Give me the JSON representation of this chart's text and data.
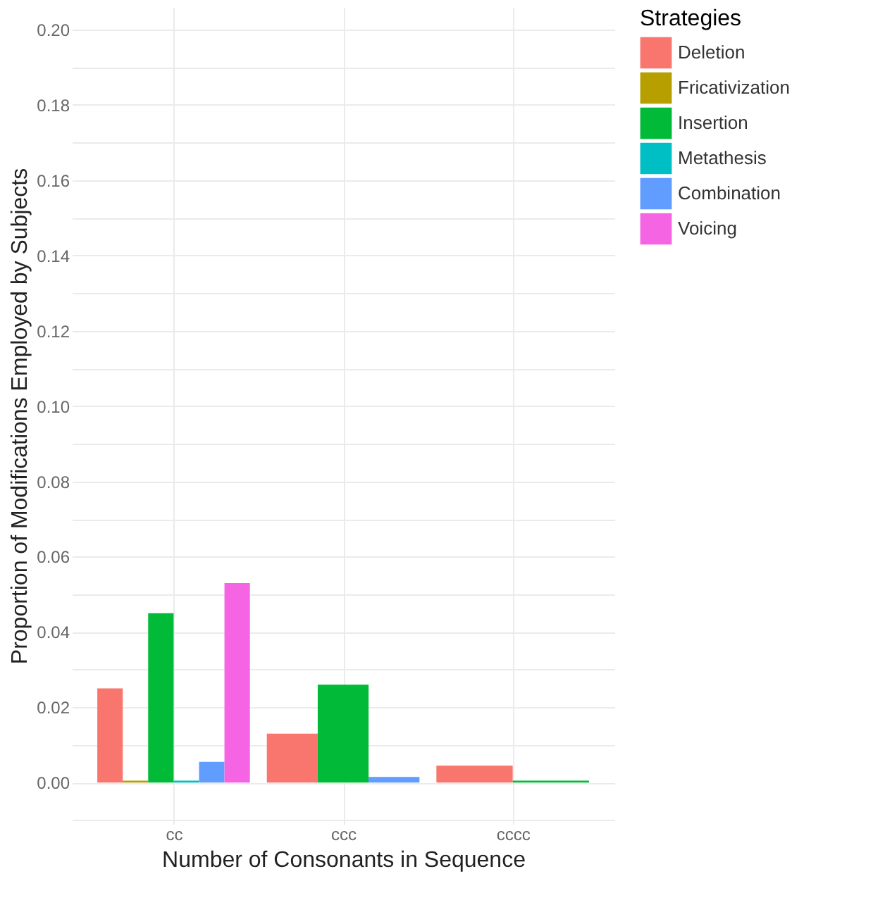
{
  "chart_data": {
    "type": "bar",
    "xlabel": "Number of Consonants in Sequence",
    "ylabel": "Proportion of Modifications Employed by Subjects",
    "legend_title": "Strategies",
    "legend": "right",
    "grid": true,
    "categories": [
      "cc",
      "ccc",
      "cccc"
    ],
    "ylim": [
      -0.011,
      0.206
    ],
    "yticks": [
      {
        "value": -0.01,
        "label": null
      },
      {
        "value": 0,
        "label": "0.00"
      },
      {
        "value": 0.01,
        "label": null
      },
      0.02,
      {
        "value": 0.03,
        "label": null
      },
      0.04,
      {
        "value": 0.05,
        "label": null
      },
      0.06,
      {
        "value": 0.07,
        "label": null
      },
      0.08,
      {
        "value": 0.09,
        "label": null
      },
      {
        "value": 0.1,
        "label": "0.10"
      },
      {
        "value": 0.11,
        "label": null
      },
      0.12,
      {
        "value": 0.13,
        "label": null
      },
      0.14,
      {
        "value": 0.15,
        "label": null
      },
      0.16,
      {
        "value": 0.17,
        "label": null
      },
      0.18,
      {
        "value": 0.19,
        "label": null
      },
      {
        "value": 0.2,
        "label": "0.20"
      }
    ],
    "series": [
      {
        "name": "Deletion",
        "color": "#f8766d",
        "values": [
          0.025,
          0.013,
          0.0045
        ]
      },
      {
        "name": "Fricativization",
        "color": "#b79f00",
        "values": [
          0.0005,
          null,
          null
        ]
      },
      {
        "name": "Insertion",
        "color": "#00ba38",
        "values": [
          0.045,
          0.026,
          0.0005
        ]
      },
      {
        "name": "Metathesis",
        "color": "#00bfc4",
        "values": [
          0.0005,
          null,
          null
        ]
      },
      {
        "name": "Combination",
        "color": "#619cff",
        "values": [
          0.0055,
          0.0015,
          null
        ]
      },
      {
        "name": "Voicing",
        "color": "#f564e3",
        "values": [
          0.053,
          null,
          null
        ]
      }
    ]
  }
}
